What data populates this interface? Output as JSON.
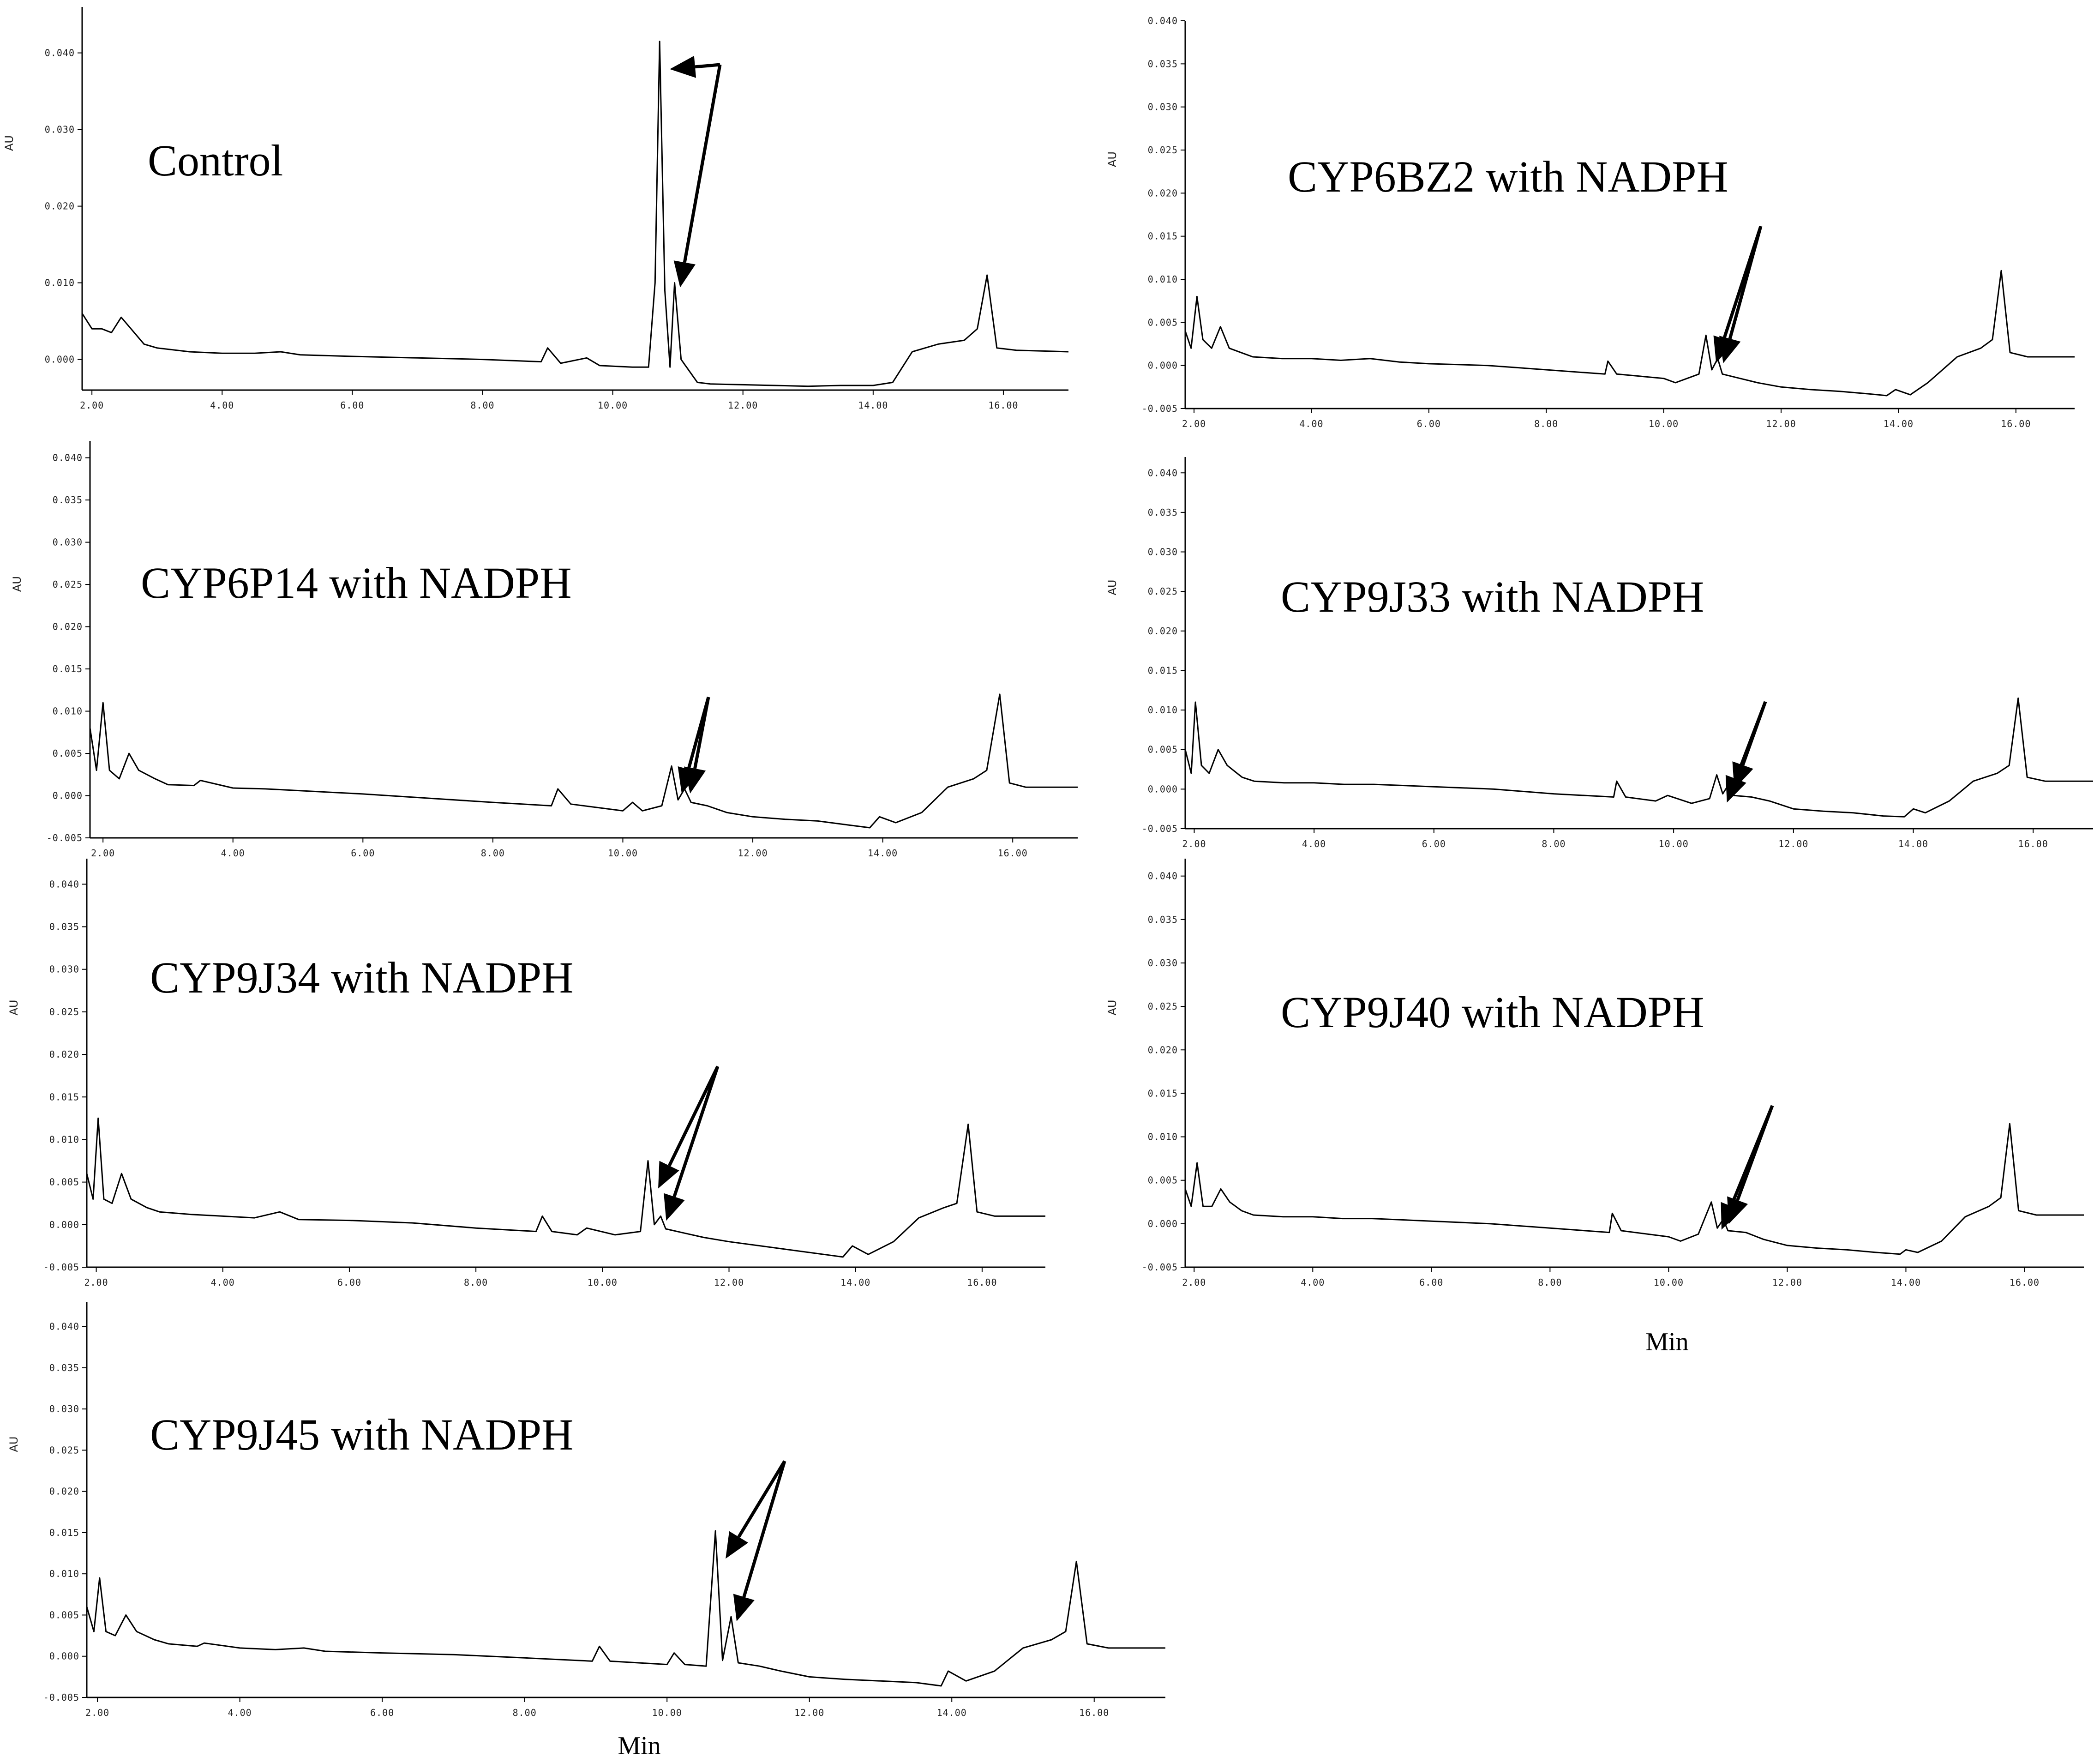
{
  "figure": {
    "xlabels": [
      {
        "text": "Min"
      },
      {
        "text": "Min"
      }
    ]
  },
  "chart_data": [
    {
      "type": "line",
      "title": "Control",
      "ylabel": "AU",
      "xlim": [
        1.85,
        17.0
      ],
      "ylim": [
        -0.004,
        0.046
      ],
      "xticks": [
        "2.00",
        "4.00",
        "6.00",
        "8.00",
        "10.00",
        "12.00",
        "14.00",
        "16.00"
      ],
      "yticks": [
        "0.000",
        "0.010",
        "0.020",
        "0.030",
        "0.040"
      ],
      "series": [
        {
          "x": [
            1.85,
            2.0,
            2.15,
            2.3,
            2.45,
            2.6,
            2.8,
            3.0,
            3.5,
            4.0,
            4.5,
            4.9,
            5.2,
            6.0,
            7.0,
            8.0,
            8.9,
            9.0,
            9.2,
            9.6,
            9.8,
            10.3,
            10.55,
            10.65,
            10.72,
            10.8,
            10.88,
            10.95,
            11.05,
            11.3,
            11.5,
            12.0,
            12.5,
            13.0,
            13.5,
            14.0,
            14.3,
            14.6,
            15.0,
            15.4,
            15.6,
            15.75,
            15.9,
            16.2,
            17.0
          ],
          "y": [
            0.006,
            0.004,
            0.004,
            0.0035,
            0.0055,
            0.004,
            0.002,
            0.0015,
            0.001,
            0.0008,
            0.0008,
            0.001,
            0.0006,
            0.0004,
            0.0002,
            0.0,
            -0.0003,
            0.0015,
            -0.0005,
            0.0002,
            -0.0008,
            -0.001,
            -0.001,
            0.01,
            0.0415,
            0.009,
            -0.001,
            0.01,
            0.0,
            -0.003,
            -0.0032,
            -0.0033,
            -0.0034,
            -0.0035,
            -0.0034,
            -0.0034,
            -0.003,
            0.001,
            0.002,
            0.0025,
            0.004,
            0.011,
            0.0015,
            0.0012,
            0.001
          ]
        }
      ],
      "annotations": [
        "arrow to 10.72 peak",
        "arrow to 10.95 peak"
      ]
    },
    {
      "type": "line",
      "title": "CYP6BZ2 with NADPH",
      "ylabel": "AU",
      "xlim": [
        1.85,
        17.0
      ],
      "ylim": [
        -0.005,
        0.04
      ],
      "xticks": [
        "2.00",
        "4.00",
        "6.00",
        "8.00",
        "10.00",
        "12.00",
        "14.00",
        "16.00"
      ],
      "yticks": [
        "-0.005",
        "0.000",
        "0.005",
        "0.010",
        "0.015",
        "0.020",
        "0.025",
        "0.030",
        "0.035",
        "0.040"
      ],
      "series": [
        {
          "x": [
            1.85,
            1.95,
            2.05,
            2.15,
            2.3,
            2.45,
            2.6,
            2.8,
            3.0,
            3.5,
            4.0,
            4.5,
            5.0,
            5.5,
            6.0,
            7.0,
            8.0,
            9.0,
            9.05,
            9.2,
            10.0,
            10.2,
            10.4,
            10.6,
            10.72,
            10.82,
            10.92,
            11.0,
            11.3,
            11.6,
            12.0,
            12.5,
            13.0,
            13.5,
            13.8,
            13.95,
            14.2,
            14.5,
            15.0,
            15.4,
            15.6,
            15.75,
            15.9,
            16.2,
            17.0
          ],
          "y": [
            0.004,
            0.002,
            0.008,
            0.003,
            0.002,
            0.0045,
            0.002,
            0.0015,
            0.001,
            0.0008,
            0.0008,
            0.0006,
            0.0008,
            0.0004,
            0.0002,
            0.0,
            -0.0005,
            -0.001,
            0.0005,
            -0.001,
            -0.0015,
            -0.002,
            -0.0015,
            -0.001,
            0.0035,
            -0.0005,
            0.0008,
            -0.001,
            -0.0015,
            -0.002,
            -0.0025,
            -0.0028,
            -0.003,
            -0.0033,
            -0.0035,
            -0.0028,
            -0.0034,
            -0.002,
            0.001,
            0.002,
            0.003,
            0.011,
            0.0015,
            0.001,
            0.001
          ]
        }
      ],
      "annotations": [
        "arrow to 10.72 peak",
        "arrow to 10.92 peak"
      ]
    },
    {
      "type": "line",
      "title": "CYP6P14 with NADPH",
      "ylabel": "AU",
      "xlim": [
        1.8,
        17.0
      ],
      "ylim": [
        -0.005,
        0.042
      ],
      "xticks": [
        "2.00",
        "4.00",
        "6.00",
        "8.00",
        "10.00",
        "12.00",
        "14.00",
        "16.00"
      ],
      "yticks": [
        "-0.005",
        "0.000",
        "0.005",
        "0.010",
        "0.015",
        "0.020",
        "0.025",
        "0.030",
        "0.035",
        "0.040"
      ],
      "series": [
        {
          "x": [
            1.8,
            1.9,
            2.0,
            2.1,
            2.25,
            2.4,
            2.55,
            2.8,
            3.0,
            3.4,
            3.5,
            4.0,
            4.5,
            5.0,
            5.5,
            6.0,
            7.0,
            8.0,
            8.9,
            9.0,
            9.2,
            10.0,
            10.15,
            10.3,
            10.6,
            10.75,
            10.85,
            10.95,
            11.05,
            11.3,
            11.6,
            12.0,
            12.5,
            13.0,
            13.5,
            13.8,
            13.95,
            14.2,
            14.6,
            15.0,
            15.4,
            15.6,
            15.8,
            15.95,
            16.2,
            17.0
          ],
          "y": [
            0.008,
            0.003,
            0.011,
            0.003,
            0.002,
            0.005,
            0.003,
            0.002,
            0.0013,
            0.0012,
            0.0018,
            0.0009,
            0.0008,
            0.0006,
            0.0004,
            0.0002,
            -0.0003,
            -0.0008,
            -0.0012,
            0.0008,
            -0.001,
            -0.0018,
            -0.0008,
            -0.0018,
            -0.0012,
            0.0035,
            -0.0005,
            0.0008,
            -0.0008,
            -0.0012,
            -0.002,
            -0.0025,
            -0.0028,
            -0.003,
            -0.0035,
            -0.0038,
            -0.0025,
            -0.0032,
            -0.002,
            0.001,
            0.002,
            0.003,
            0.012,
            0.0015,
            0.001,
            0.001
          ]
        }
      ],
      "annotations": [
        "arrow to 10.75 peak",
        "arrow to 10.95 peak"
      ]
    },
    {
      "type": "line",
      "title": "CYP9J33 with NADPH",
      "ylabel": "AU",
      "xlim": [
        1.85,
        17.0
      ],
      "ylim": [
        -0.005,
        0.042
      ],
      "xticks": [
        "2.00",
        "4.00",
        "6.00",
        "8.00",
        "10.00",
        "12.00",
        "14.00",
        "16.00"
      ],
      "yticks": [
        "-0.005",
        "0.000",
        "0.005",
        "0.010",
        "0.015",
        "0.020",
        "0.025",
        "0.030",
        "0.035",
        "0.040"
      ],
      "series": [
        {
          "x": [
            1.85,
            1.95,
            2.02,
            2.12,
            2.25,
            2.4,
            2.55,
            2.8,
            3.0,
            3.5,
            4.0,
            4.5,
            5.0,
            6.0,
            7.0,
            8.0,
            9.0,
            9.05,
            9.2,
            9.7,
            9.9,
            10.3,
            10.6,
            10.72,
            10.82,
            10.92,
            11.0,
            11.3,
            11.6,
            12.0,
            12.5,
            13.0,
            13.5,
            13.85,
            14.0,
            14.2,
            14.6,
            15.0,
            15.4,
            15.6,
            15.75,
            15.9,
            16.2,
            17.0
          ],
          "y": [
            0.005,
            0.002,
            0.011,
            0.003,
            0.002,
            0.005,
            0.003,
            0.0015,
            0.001,
            0.0008,
            0.0008,
            0.0006,
            0.0006,
            0.0003,
            0.0,
            -0.0006,
            -0.001,
            0.001,
            -0.001,
            -0.0015,
            -0.0008,
            -0.0018,
            -0.0012,
            0.0018,
            -0.0006,
            0.0006,
            -0.0008,
            -0.001,
            -0.0015,
            -0.0025,
            -0.0028,
            -0.003,
            -0.0034,
            -0.0035,
            -0.0025,
            -0.003,
            -0.0015,
            0.001,
            0.002,
            0.003,
            0.0115,
            0.0015,
            0.001,
            0.001
          ]
        }
      ],
      "annotations": [
        "arrow to 10.72 peak",
        "arrow to 10.92 peak"
      ]
    },
    {
      "type": "line",
      "title": "CYP9J34 with NADPH",
      "ylabel": "AU",
      "xlim": [
        1.85,
        17.0
      ],
      "ylim": [
        -0.005,
        0.043
      ],
      "xticks": [
        "2.00",
        "4.00",
        "6.00",
        "8.00",
        "10.00",
        "12.00",
        "14.00",
        "16.00"
      ],
      "yticks": [
        "-0.005",
        "0.000",
        "0.005",
        "0.010",
        "0.015",
        "0.020",
        "0.025",
        "0.030",
        "0.035",
        "0.040"
      ],
      "series": [
        {
          "x": [
            1.85,
            1.95,
            2.03,
            2.12,
            2.25,
            2.4,
            2.55,
            2.8,
            3.0,
            3.5,
            4.0,
            4.5,
            4.9,
            5.2,
            6.0,
            7.0,
            8.0,
            8.95,
            9.05,
            9.2,
            9.6,
            9.75,
            10.2,
            10.6,
            10.72,
            10.82,
            10.92,
            11.0,
            11.3,
            11.6,
            12.0,
            12.5,
            13.0,
            13.5,
            13.8,
            13.95,
            14.2,
            14.6,
            15.0,
            15.4,
            15.6,
            15.78,
            15.92,
            16.2,
            17.0
          ],
          "y": [
            0.006,
            0.003,
            0.0125,
            0.003,
            0.0025,
            0.006,
            0.003,
            0.002,
            0.0015,
            0.0012,
            0.001,
            0.0008,
            0.0015,
            0.0006,
            0.0005,
            0.0002,
            -0.0004,
            -0.0008,
            0.001,
            -0.0008,
            -0.0012,
            -0.0004,
            -0.0012,
            -0.0008,
            0.0075,
            0.0,
            0.001,
            -0.0005,
            -0.001,
            -0.0015,
            -0.002,
            -0.0025,
            -0.003,
            -0.0035,
            -0.0038,
            -0.0025,
            -0.0035,
            -0.002,
            0.0008,
            0.002,
            0.0025,
            0.0118,
            0.0015,
            0.001,
            0.001
          ]
        }
      ],
      "annotations": [
        "arrow to 10.72 peak",
        "arrow to 10.92 peak"
      ]
    },
    {
      "type": "line",
      "title": "CYP9J40 with NADPH",
      "ylabel": "AU",
      "xlim": [
        1.85,
        17.0
      ],
      "ylim": [
        -0.005,
        0.042
      ],
      "xticks": [
        "2.00",
        "4.00",
        "6.00",
        "8.00",
        "10.00",
        "12.00",
        "14.00",
        "16.00"
      ],
      "yticks": [
        "-0.005",
        "0.000",
        "0.005",
        "0.010",
        "0.015",
        "0.020",
        "0.025",
        "0.030",
        "0.035",
        "0.040"
      ],
      "series": [
        {
          "x": [
            1.85,
            1.95,
            2.05,
            2.15,
            2.3,
            2.45,
            2.6,
            2.8,
            3.0,
            3.5,
            4.0,
            4.5,
            5.0,
            6.0,
            7.0,
            8.0,
            9.0,
            9.05,
            9.2,
            10.0,
            10.2,
            10.5,
            10.72,
            10.82,
            10.92,
            11.0,
            11.3,
            11.6,
            12.0,
            12.5,
            13.0,
            13.5,
            13.9,
            14.0,
            14.2,
            14.6,
            15.0,
            15.4,
            15.6,
            15.75,
            15.9,
            16.2,
            17.0
          ],
          "y": [
            0.004,
            0.002,
            0.007,
            0.002,
            0.002,
            0.004,
            0.0025,
            0.0015,
            0.001,
            0.0008,
            0.0008,
            0.0006,
            0.0006,
            0.0003,
            0.0,
            -0.0005,
            -0.001,
            0.0012,
            -0.0008,
            -0.0015,
            -0.002,
            -0.0012,
            0.0025,
            -0.0005,
            0.0005,
            -0.0008,
            -0.001,
            -0.0018,
            -0.0025,
            -0.0028,
            -0.003,
            -0.0033,
            -0.0035,
            -0.003,
            -0.0033,
            -0.002,
            0.0008,
            0.002,
            0.003,
            0.0115,
            0.0015,
            0.001,
            0.001
          ]
        }
      ],
      "annotations": [
        "arrow to 10.72 peak",
        "arrow to 10.92 peak"
      ]
    },
    {
      "type": "line",
      "title": "CYP9J45 with NADPH",
      "ylabel": "AU",
      "xlim": [
        1.85,
        17.0
      ],
      "ylim": [
        -0.005,
        0.043
      ],
      "xticks": [
        "2.00",
        "4.00",
        "6.00",
        "8.00",
        "10.00",
        "12.00",
        "14.00",
        "16.00"
      ],
      "yticks": [
        "-0.005",
        "0.000",
        "0.005",
        "0.010",
        "0.015",
        "0.020",
        "0.025",
        "0.030",
        "0.035",
        "0.040"
      ],
      "series": [
        {
          "x": [
            1.85,
            1.95,
            2.03,
            2.12,
            2.25,
            2.4,
            2.55,
            2.8,
            3.0,
            3.4,
            3.5,
            4.0,
            4.5,
            4.9,
            5.2,
            6.0,
            7.0,
            8.0,
            8.95,
            9.05,
            9.2,
            9.6,
            10.0,
            10.1,
            10.25,
            10.55,
            10.68,
            10.78,
            10.9,
            11.0,
            11.3,
            11.6,
            12.0,
            12.5,
            13.0,
            13.5,
            13.85,
            13.95,
            14.2,
            14.6,
            15.0,
            15.4,
            15.6,
            15.75,
            15.9,
            16.2,
            17.0
          ],
          "y": [
            0.006,
            0.003,
            0.0095,
            0.003,
            0.0025,
            0.005,
            0.003,
            0.002,
            0.0015,
            0.0012,
            0.0016,
            0.001,
            0.0008,
            0.001,
            0.0006,
            0.0004,
            0.0002,
            -0.0002,
            -0.0006,
            0.0012,
            -0.0006,
            -0.0008,
            -0.001,
            0.0004,
            -0.001,
            -0.0012,
            0.0152,
            -0.0005,
            0.0048,
            -0.0008,
            -0.0012,
            -0.0018,
            -0.0025,
            -0.0028,
            -0.003,
            -0.0032,
            -0.0036,
            -0.0018,
            -0.003,
            -0.0018,
            0.001,
            0.002,
            0.003,
            0.0115,
            0.0015,
            0.001,
            0.001
          ]
        }
      ],
      "annotations": [
        "arrow to 10.68 peak",
        "arrow to 10.9 peak"
      ]
    }
  ]
}
